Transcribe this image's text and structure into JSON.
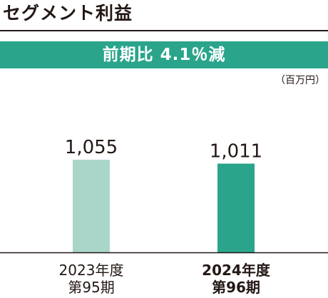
{
  "title": "セグメント利益",
  "banner_text": "前期比 4.1％減",
  "unit": "（百万円）",
  "colors": {
    "accent": "#2aa58b",
    "previous_bar": "#a9d6c9",
    "current_bar": "#2aa58b",
    "text": "#231815"
  },
  "chart_data": {
    "type": "bar",
    "title": "セグメント利益",
    "categories": [
      {
        "line1": "2023年度",
        "line2": "第95期"
      },
      {
        "line1": "2024年度",
        "line2": "第96期"
      }
    ],
    "values": [
      1055,
      1011
    ],
    "value_labels": [
      "1,055",
      "1,011"
    ],
    "unit": "百万円",
    "ylim": [
      0,
      1900
    ],
    "grid": false,
    "legend": "none"
  }
}
